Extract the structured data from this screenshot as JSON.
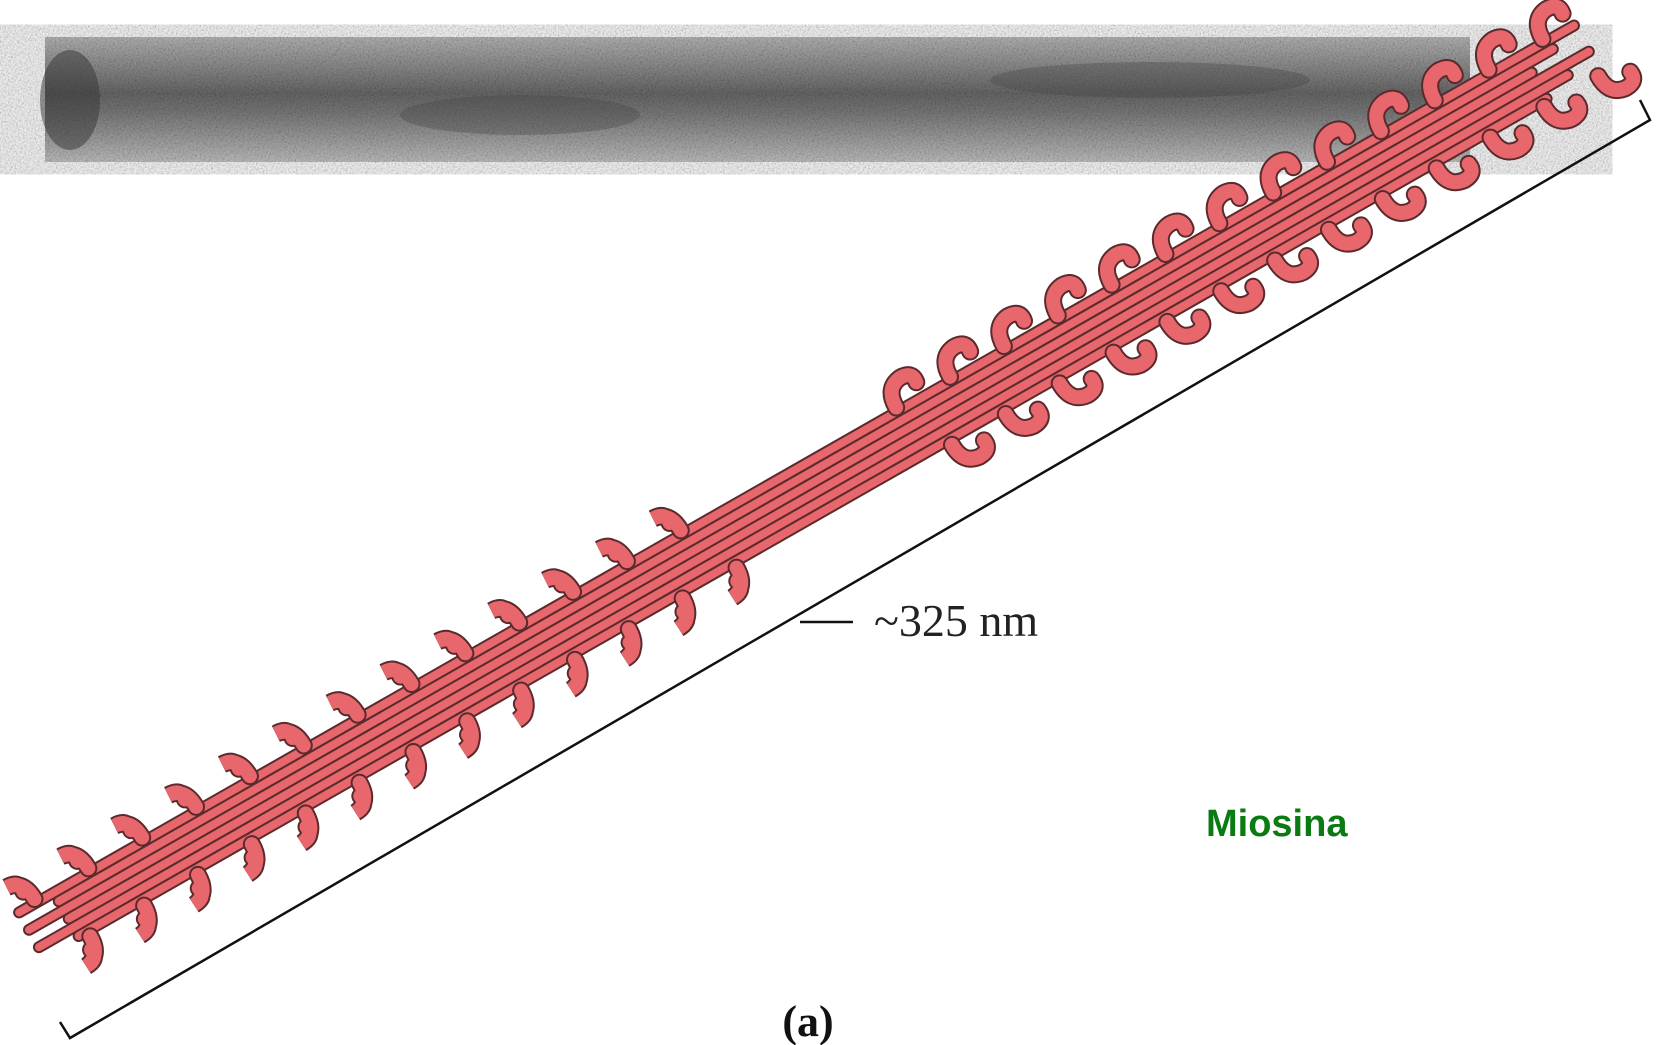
{
  "labels": {
    "length": "~325 nm",
    "name": "Miosina",
    "panel": "(a)"
  }
}
